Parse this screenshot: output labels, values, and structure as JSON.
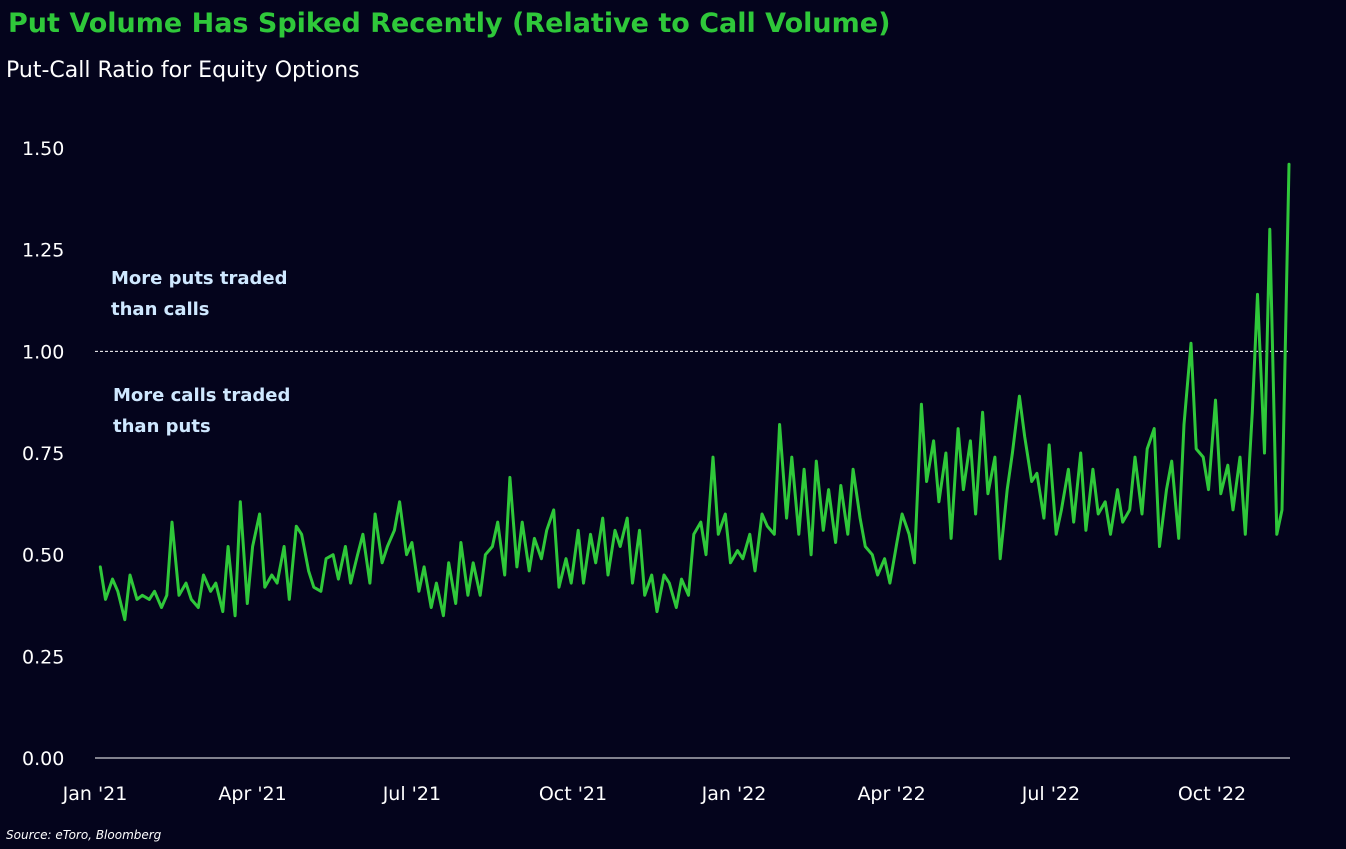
{
  "chart_data": {
    "type": "line",
    "title": "Put Volume Has Spiked Recently (Relative to Call Volume)",
    "subtitle": "Put-Call Ratio for Equity Options",
    "ylim": [
      0,
      1.5
    ],
    "yticks": [
      "0.00",
      "0.25",
      "0.50",
      "0.75",
      "1.00",
      "1.25",
      "1.50"
    ],
    "xticks": [
      {
        "label": "Jan '21",
        "date": "2021-01-01"
      },
      {
        "label": "Apr '21",
        "date": "2021-04-01"
      },
      {
        "label": "Jul '21",
        "date": "2021-07-01"
      },
      {
        "label": "Oct '21",
        "date": "2021-10-01"
      },
      {
        "label": "Jan '22",
        "date": "2022-01-01"
      },
      {
        "label": "Apr '22",
        "date": "2022-04-01"
      },
      {
        "label": "Jul '22",
        "date": "2022-07-01"
      },
      {
        "label": "Oct '22",
        "date": "2022-10-01"
      }
    ],
    "reference_line": {
      "y": 1.0,
      "style": "dashed"
    },
    "annotations": {
      "above": [
        "More puts traded",
        "than calls"
      ],
      "below": [
        "More calls traded",
        "than puts"
      ]
    },
    "grid": false,
    "series": [
      {
        "color": "#2fc83a",
        "points": [
          [
            "2021-01-04",
            0.47
          ],
          [
            "2021-01-07",
            0.39
          ],
          [
            "2021-01-11",
            0.44
          ],
          [
            "2021-01-14",
            0.41
          ],
          [
            "2021-01-18",
            0.34
          ],
          [
            "2021-01-21",
            0.45
          ],
          [
            "2021-01-25",
            0.39
          ],
          [
            "2021-01-28",
            0.4
          ],
          [
            "2021-02-01",
            0.39
          ],
          [
            "2021-02-04",
            0.41
          ],
          [
            "2021-02-08",
            0.37
          ],
          [
            "2021-02-11",
            0.4
          ],
          [
            "2021-02-14",
            0.58
          ],
          [
            "2021-02-18",
            0.4
          ],
          [
            "2021-02-22",
            0.43
          ],
          [
            "2021-02-25",
            0.39
          ],
          [
            "2021-03-01",
            0.37
          ],
          [
            "2021-03-04",
            0.45
          ],
          [
            "2021-03-08",
            0.41
          ],
          [
            "2021-03-11",
            0.43
          ],
          [
            "2021-03-15",
            0.36
          ],
          [
            "2021-03-18",
            0.52
          ],
          [
            "2021-03-22",
            0.35
          ],
          [
            "2021-03-25",
            0.63
          ],
          [
            "2021-03-29",
            0.38
          ],
          [
            "2021-04-01",
            0.52
          ],
          [
            "2021-04-05",
            0.6
          ],
          [
            "2021-04-08",
            0.42
          ],
          [
            "2021-04-12",
            0.45
          ],
          [
            "2021-04-15",
            0.43
          ],
          [
            "2021-04-19",
            0.52
          ],
          [
            "2021-04-22",
            0.39
          ],
          [
            "2021-04-26",
            0.57
          ],
          [
            "2021-04-29",
            0.55
          ],
          [
            "2021-05-03",
            0.46
          ],
          [
            "2021-05-06",
            0.42
          ],
          [
            "2021-05-10",
            0.41
          ],
          [
            "2021-05-13",
            0.49
          ],
          [
            "2021-05-17",
            0.5
          ],
          [
            "2021-05-20",
            0.44
          ],
          [
            "2021-05-24",
            0.52
          ],
          [
            "2021-05-27",
            0.43
          ],
          [
            "2021-05-31",
            0.5
          ],
          [
            "2021-06-03",
            0.55
          ],
          [
            "2021-06-07",
            0.43
          ],
          [
            "2021-06-10",
            0.6
          ],
          [
            "2021-06-14",
            0.48
          ],
          [
            "2021-06-17",
            0.52
          ],
          [
            "2021-06-21",
            0.56
          ],
          [
            "2021-06-24",
            0.63
          ],
          [
            "2021-06-28",
            0.5
          ],
          [
            "2021-07-01",
            0.53
          ],
          [
            "2021-07-05",
            0.41
          ],
          [
            "2021-07-08",
            0.47
          ],
          [
            "2021-07-12",
            0.37
          ],
          [
            "2021-07-15",
            0.43
          ],
          [
            "2021-07-19",
            0.35
          ],
          [
            "2021-07-22",
            0.48
          ],
          [
            "2021-07-26",
            0.38
          ],
          [
            "2021-07-29",
            0.53
          ],
          [
            "2021-08-02",
            0.4
          ],
          [
            "2021-08-05",
            0.48
          ],
          [
            "2021-08-09",
            0.4
          ],
          [
            "2021-08-12",
            0.5
          ],
          [
            "2021-08-16",
            0.52
          ],
          [
            "2021-08-19",
            0.58
          ],
          [
            "2021-08-23",
            0.45
          ],
          [
            "2021-08-26",
            0.69
          ],
          [
            "2021-08-30",
            0.47
          ],
          [
            "2021-09-02",
            0.58
          ],
          [
            "2021-09-06",
            0.46
          ],
          [
            "2021-09-09",
            0.54
          ],
          [
            "2021-09-13",
            0.49
          ],
          [
            "2021-09-16",
            0.56
          ],
          [
            "2021-09-20",
            0.61
          ],
          [
            "2021-09-23",
            0.42
          ],
          [
            "2021-09-27",
            0.49
          ],
          [
            "2021-09-30",
            0.43
          ],
          [
            "2021-10-04",
            0.56
          ],
          [
            "2021-10-07",
            0.43
          ],
          [
            "2021-10-11",
            0.55
          ],
          [
            "2021-10-14",
            0.48
          ],
          [
            "2021-10-18",
            0.59
          ],
          [
            "2021-10-21",
            0.45
          ],
          [
            "2021-10-25",
            0.56
          ],
          [
            "2021-10-28",
            0.52
          ],
          [
            "2021-11-01",
            0.59
          ],
          [
            "2021-11-04",
            0.43
          ],
          [
            "2021-11-08",
            0.56
          ],
          [
            "2021-11-11",
            0.4
          ],
          [
            "2021-11-15",
            0.45
          ],
          [
            "2021-11-18",
            0.36
          ],
          [
            "2021-11-22",
            0.45
          ],
          [
            "2021-11-25",
            0.43
          ],
          [
            "2021-11-29",
            0.37
          ],
          [
            "2021-12-02",
            0.44
          ],
          [
            "2021-12-06",
            0.4
          ],
          [
            "2021-12-09",
            0.55
          ],
          [
            "2021-12-13",
            0.58
          ],
          [
            "2021-12-16",
            0.5
          ],
          [
            "2021-12-20",
            0.74
          ],
          [
            "2021-12-23",
            0.55
          ],
          [
            "2021-12-27",
            0.6
          ],
          [
            "2021-12-30",
            0.48
          ],
          [
            "2022-01-03",
            0.51
          ],
          [
            "2022-01-06",
            0.49
          ],
          [
            "2022-01-10",
            0.55
          ],
          [
            "2022-01-13",
            0.46
          ],
          [
            "2022-01-17",
            0.6
          ],
          [
            "2022-01-20",
            0.57
          ],
          [
            "2022-01-24",
            0.55
          ],
          [
            "2022-01-27",
            0.82
          ],
          [
            "2022-01-31",
            0.59
          ],
          [
            "2022-02-03",
            0.74
          ],
          [
            "2022-02-07",
            0.55
          ],
          [
            "2022-02-10",
            0.71
          ],
          [
            "2022-02-14",
            0.5
          ],
          [
            "2022-02-17",
            0.73
          ],
          [
            "2022-02-21",
            0.56
          ],
          [
            "2022-02-24",
            0.66
          ],
          [
            "2022-02-28",
            0.53
          ],
          [
            "2022-03-03",
            0.67
          ],
          [
            "2022-03-07",
            0.55
          ],
          [
            "2022-03-10",
            0.71
          ],
          [
            "2022-03-14",
            0.59
          ],
          [
            "2022-03-17",
            0.52
          ],
          [
            "2022-03-21",
            0.5
          ],
          [
            "2022-03-24",
            0.45
          ],
          [
            "2022-03-28",
            0.49
          ],
          [
            "2022-03-31",
            0.43
          ],
          [
            "2022-04-04",
            0.53
          ],
          [
            "2022-04-07",
            0.6
          ],
          [
            "2022-04-11",
            0.55
          ],
          [
            "2022-04-14",
            0.48
          ],
          [
            "2022-04-18",
            0.87
          ],
          [
            "2022-04-21",
            0.68
          ],
          [
            "2022-04-25",
            0.78
          ],
          [
            "2022-04-28",
            0.63
          ],
          [
            "2022-05-02",
            0.75
          ],
          [
            "2022-05-05",
            0.54
          ],
          [
            "2022-05-09",
            0.81
          ],
          [
            "2022-05-12",
            0.66
          ],
          [
            "2022-05-16",
            0.78
          ],
          [
            "2022-05-19",
            0.6
          ],
          [
            "2022-05-23",
            0.85
          ],
          [
            "2022-05-26",
            0.65
          ],
          [
            "2022-05-30",
            0.74
          ],
          [
            "2022-06-02",
            0.49
          ],
          [
            "2022-06-06",
            0.66
          ],
          [
            "2022-06-09",
            0.75
          ],
          [
            "2022-06-13",
            0.89
          ],
          [
            "2022-06-16",
            0.79
          ],
          [
            "2022-06-20",
            0.68
          ],
          [
            "2022-06-23",
            0.7
          ],
          [
            "2022-06-27",
            0.59
          ],
          [
            "2022-06-30",
            0.77
          ],
          [
            "2022-07-04",
            0.55
          ],
          [
            "2022-07-07",
            0.61
          ],
          [
            "2022-07-11",
            0.71
          ],
          [
            "2022-07-14",
            0.58
          ],
          [
            "2022-07-18",
            0.75
          ],
          [
            "2022-07-21",
            0.56
          ],
          [
            "2022-07-25",
            0.71
          ],
          [
            "2022-07-28",
            0.6
          ],
          [
            "2022-08-01",
            0.63
          ],
          [
            "2022-08-04",
            0.55
          ],
          [
            "2022-08-08",
            0.66
          ],
          [
            "2022-08-11",
            0.58
          ],
          [
            "2022-08-15",
            0.61
          ],
          [
            "2022-08-18",
            0.74
          ],
          [
            "2022-08-22",
            0.6
          ],
          [
            "2022-08-25",
            0.76
          ],
          [
            "2022-08-29",
            0.81
          ],
          [
            "2022-09-01",
            0.52
          ],
          [
            "2022-09-05",
            0.66
          ],
          [
            "2022-09-08",
            0.73
          ],
          [
            "2022-09-12",
            0.54
          ],
          [
            "2022-09-15",
            0.82
          ],
          [
            "2022-09-19",
            1.02
          ],
          [
            "2022-09-22",
            0.76
          ],
          [
            "2022-09-26",
            0.74
          ],
          [
            "2022-09-29",
            0.66
          ],
          [
            "2022-10-03",
            0.88
          ],
          [
            "2022-10-06",
            0.65
          ],
          [
            "2022-10-10",
            0.72
          ],
          [
            "2022-10-13",
            0.61
          ],
          [
            "2022-10-17",
            0.74
          ],
          [
            "2022-10-20",
            0.55
          ],
          [
            "2022-10-24",
            0.85
          ],
          [
            "2022-10-27",
            1.14
          ],
          [
            "2022-10-31",
            0.75
          ],
          [
            "2022-11-03",
            1.3
          ],
          [
            "2022-11-07",
            0.55
          ],
          [
            "2022-11-10",
            0.61
          ],
          [
            "2022-11-14",
            1.46
          ]
        ]
      }
    ],
    "source": "Source: eToro, Bloomberg"
  }
}
